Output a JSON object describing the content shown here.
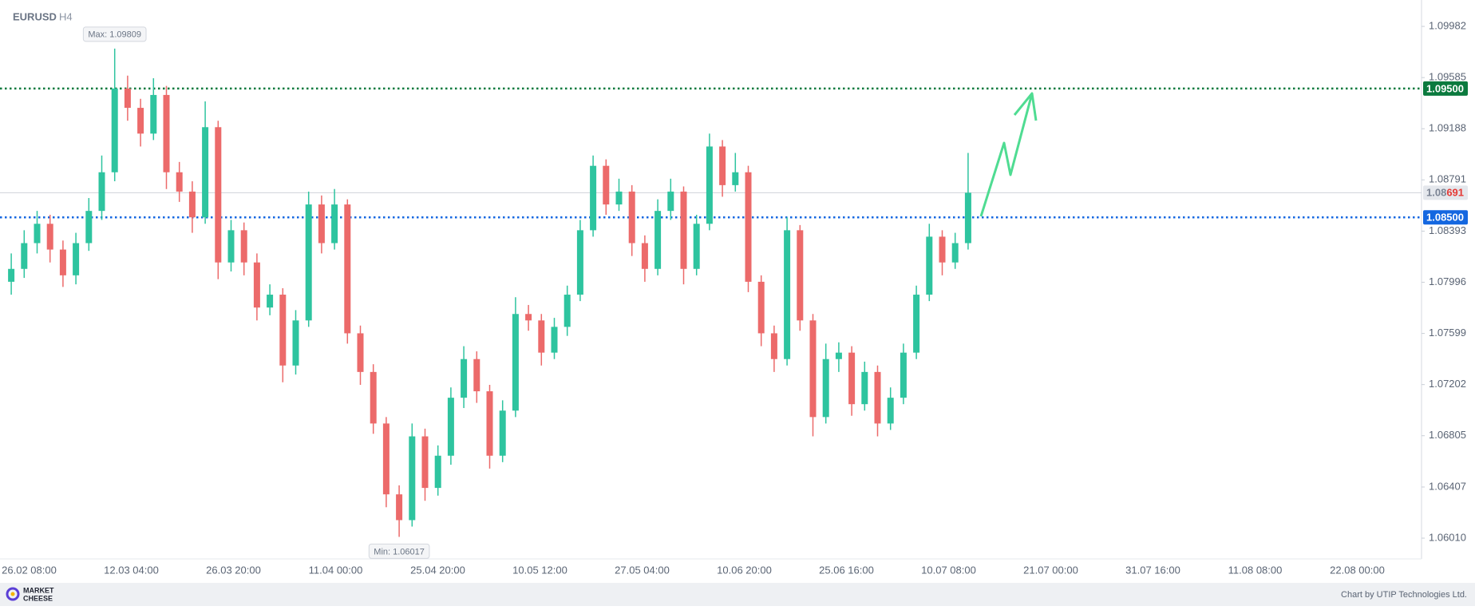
{
  "header": {
    "symbol": "EURUSD",
    "timeframe": "H4"
  },
  "chart_data": {
    "type": "candlestick",
    "categories": [
      "26.02 08:00",
      "12.03 04:00",
      "26.03 20:00",
      "11.04 00:00",
      "25.04 20:00",
      "10.05 12:00",
      "27.05 04:00",
      "10.06 20:00",
      "25.06 16:00",
      "10.07 08:00",
      "21.07 00:00",
      "31.07 16:00",
      "11.08 08:00",
      "22.08 00:00"
    ],
    "open": [
      1.08,
      1.081,
      1.083,
      1.0845,
      1.0825,
      1.0805,
      1.083,
      1.0855,
      1.0885,
      1.095,
      1.0935,
      1.0915,
      1.0945,
      1.0885,
      1.087,
      1.085,
      1.092,
      1.0815,
      1.084,
      1.0815,
      1.078,
      1.079,
      1.0735,
      1.077,
      1.086,
      1.083,
      1.086,
      1.076,
      1.073,
      1.069,
      1.0635,
      1.0615,
      1.068,
      1.064,
      1.0665,
      1.071,
      1.074,
      1.0715,
      1.0665,
      1.07,
      1.0775,
      1.077,
      1.0745,
      1.0765,
      1.079,
      1.084,
      1.089,
      1.086,
      1.087,
      1.083,
      1.081,
      1.0855,
      1.087,
      1.081,
      1.0845,
      1.0905,
      1.0875,
      1.0885,
      1.08,
      1.076,
      1.074,
      1.084,
      1.077,
      1.0695,
      1.074,
      1.0745,
      1.0705,
      1.073,
      1.069,
      1.071,
      1.0745,
      1.079,
      1.0835,
      1.0815,
      1.083
    ],
    "high": [
      1.0822,
      1.084,
      1.0855,
      1.0852,
      1.0832,
      1.0838,
      1.0865,
      1.0898,
      1.0981,
      1.096,
      1.0942,
      1.0958,
      1.0952,
      1.0893,
      1.0878,
      1.094,
      1.0925,
      1.0848,
      1.0846,
      1.0822,
      1.0798,
      1.0795,
      1.0778,
      1.087,
      1.0867,
      1.0872,
      1.0864,
      1.0766,
      1.0736,
      1.0695,
      1.0642,
      1.069,
      1.0686,
      1.0673,
      1.0718,
      1.075,
      1.0746,
      1.072,
      1.0708,
      1.0788,
      1.0782,
      1.0775,
      1.0772,
      1.0797,
      1.0848,
      1.0898,
      1.0895,
      1.088,
      1.0875,
      1.0836,
      1.0864,
      1.088,
      1.0874,
      1.0852,
      1.0915,
      1.091,
      1.09,
      1.089,
      1.0805,
      1.0766,
      1.085,
      1.0844,
      1.0775,
      1.0752,
      1.0753,
      1.075,
      1.0738,
      1.0735,
      1.0718,
      1.0752,
      1.0797,
      1.0845,
      1.084,
      1.0838,
      1.09
    ],
    "low": [
      1.079,
      1.0803,
      1.0822,
      1.0815,
      1.0796,
      1.0798,
      1.0824,
      1.0848,
      1.0878,
      1.0925,
      1.0905,
      1.091,
      1.0872,
      1.0862,
      1.0838,
      1.0845,
      1.0802,
      1.0808,
      1.0805,
      1.077,
      1.0774,
      1.0722,
      1.0728,
      1.0765,
      1.0822,
      1.0825,
      1.0752,
      1.072,
      1.0682,
      1.0625,
      1.0602,
      1.061,
      1.063,
      1.0634,
      1.0658,
      1.0702,
      1.0706,
      1.0655,
      1.066,
      1.0695,
      1.0762,
      1.0735,
      1.074,
      1.0758,
      1.0785,
      1.0835,
      1.0852,
      1.0855,
      1.082,
      1.08,
      1.0805,
      1.0848,
      1.0798,
      1.0805,
      1.084,
      1.0866,
      1.087,
      1.0792,
      1.075,
      1.073,
      1.0735,
      1.0762,
      1.068,
      1.069,
      1.073,
      1.0696,
      1.07,
      1.068,
      1.0685,
      1.0705,
      1.074,
      1.0785,
      1.0805,
      1.081,
      1.0825
    ],
    "close": [
      1.081,
      1.083,
      1.0845,
      1.0825,
      1.0805,
      1.083,
      1.0855,
      1.0885,
      1.095,
      1.0935,
      1.0915,
      1.0945,
      1.0885,
      1.087,
      1.085,
      1.092,
      1.0815,
      1.084,
      1.0815,
      1.078,
      1.079,
      1.0735,
      1.077,
      1.086,
      1.083,
      1.086,
      1.076,
      1.073,
      1.069,
      1.0635,
      1.0615,
      1.068,
      1.064,
      1.0665,
      1.071,
      1.074,
      1.0715,
      1.0665,
      1.07,
      1.0775,
      1.077,
      1.0745,
      1.0765,
      1.079,
      1.084,
      1.089,
      1.086,
      1.087,
      1.083,
      1.081,
      1.0855,
      1.087,
      1.081,
      1.0845,
      1.0905,
      1.0875,
      1.0885,
      1.08,
      1.076,
      1.074,
      1.084,
      1.077,
      1.0695,
      1.074,
      1.0745,
      1.0705,
      1.073,
      1.069,
      1.071,
      1.0745,
      1.079,
      1.0835,
      1.0815,
      1.083,
      1.08691
    ],
    "up_color": "#2ec49f",
    "down_color": "#ec6a6a",
    "ylim": [
      1.05849,
      1.10187
    ],
    "yticks": [
      1.09982,
      1.09585,
      1.09188,
      1.08791,
      1.08393,
      1.07996,
      1.07599,
      1.07202,
      1.06805,
      1.06407,
      {
        "value": 1.0601,
        "label": "1.06010"
      }
    ],
    "levels": [
      {
        "value": 1.095,
        "label": "1.09500",
        "color": "#0b7a3e"
      },
      {
        "value": 1.085,
        "label": "1.08500",
        "color": "#1467e0"
      }
    ],
    "current_price": 1.08691,
    "annotations": {
      "max": "Max: 1.09809",
      "min": "Min: 1.06017"
    }
  },
  "footer": {
    "brand_top": "MARKET",
    "brand_bottom": "CHEESE",
    "credit": "Chart by UTIP Technologies Ltd."
  }
}
